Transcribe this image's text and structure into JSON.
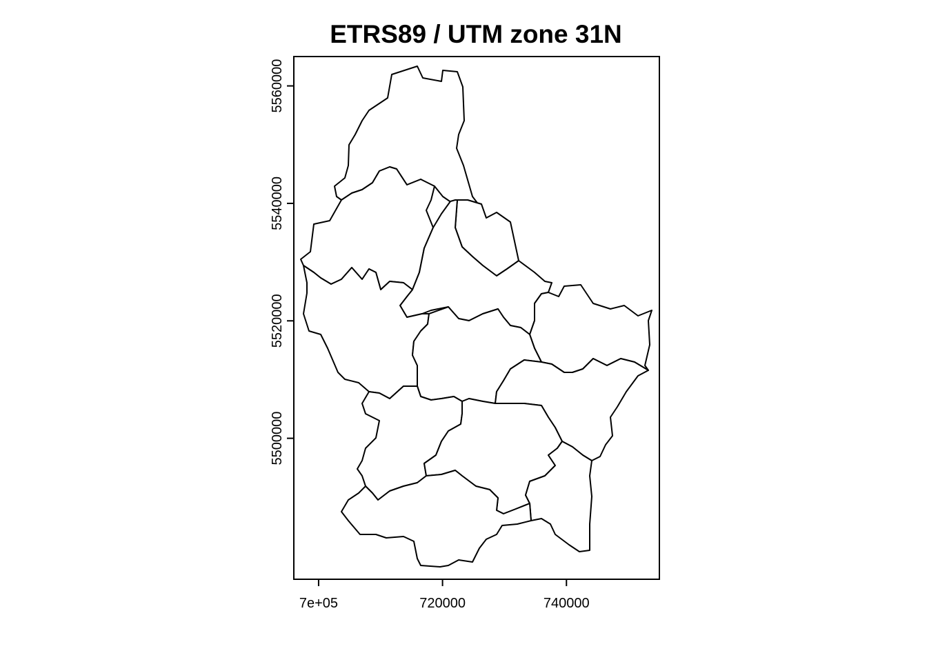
{
  "title": "ETRS89 / UTM zone 31N",
  "x_axis": {
    "min": 696000,
    "max": 755000,
    "ticks": [
      {
        "value": 700000,
        "label": "7e+05"
      },
      {
        "value": 720000,
        "label": "720000"
      },
      {
        "value": 740000,
        "label": "740000"
      }
    ]
  },
  "y_axis": {
    "min": 5476000,
    "max": 5565000,
    "ticks": [
      {
        "value": 5500000,
        "label": "5500000"
      },
      {
        "value": 5520000,
        "label": "5520000"
      },
      {
        "value": 5540000,
        "label": "5540000"
      },
      {
        "value": 5560000,
        "label": "5560000"
      }
    ]
  },
  "colors": {
    "outline": "#000000",
    "fill": "#ffffff",
    "background": "#ffffff"
  },
  "legend": "none",
  "grid": false
}
